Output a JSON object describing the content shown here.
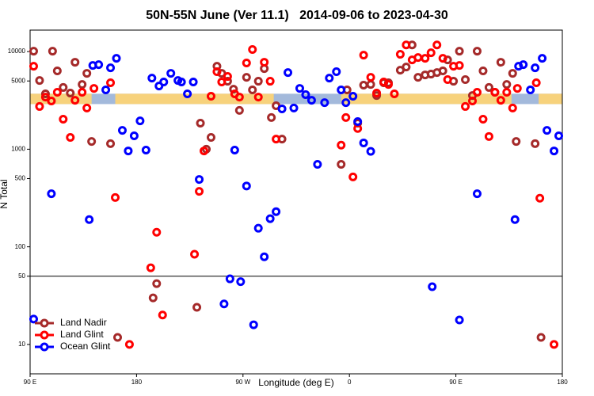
{
  "chart_data": {
    "type": "scatter",
    "title": "50N-55N June (Ver 11.1)   2014-09-06 to 2023-04-30",
    "x_label": "Longitude (deg E)",
    "y_label": "N Total",
    "log_y": true,
    "xlim": [
      90,
      540
    ],
    "ylim": [
      5,
      16600
    ],
    "xticks": [
      {
        "value": 90,
        "label": "90 E"
      },
      {
        "value": 180,
        "label": "180"
      },
      {
        "value": 270,
        "label": "90 W"
      },
      {
        "value": 360,
        "label": "0"
      },
      {
        "value": 450,
        "label": "90 E"
      },
      {
        "value": 540,
        "label": "180"
      }
    ],
    "yticks": [
      10,
      50,
      100,
      500,
      1000,
      5000,
      10000
    ],
    "hline": 50,
    "legend": "lower left",
    "surface_band": {
      "ylim": [
        2900,
        3700
      ],
      "ocean_color": "#a3b9db",
      "land_color": "#f7d27c",
      "land": [
        [
          90,
          142
        ],
        [
          162,
          296
        ],
        [
          353,
          497
        ],
        [
          520,
          540
        ]
      ]
    },
    "series": [
      {
        "name": "Land Nadir",
        "color": "#a52a2a",
        "x": [
          93,
          98,
          103,
          109,
          113,
          118,
          124,
          128,
          134,
          138,
          142,
          158,
          164,
          194,
          197,
          231,
          234,
          239,
          243,
          248,
          252,
          257,
          262,
          267,
          273,
          278,
          283,
          288,
          294,
          298,
          303,
          353,
          358,
          367,
          372,
          378,
          383,
          389,
          393,
          403,
          408,
          413,
          418,
          424,
          429,
          434,
          439,
          443,
          448,
          453,
          458,
          464,
          468,
          473,
          478,
          483,
          488,
          493,
          498,
          501,
          517,
          522
        ],
        "values": [
          10100,
          5060,
          3690,
          10100,
          6340,
          4290,
          3760,
          7780,
          4610,
          5990,
          1200,
          1140,
          11.8,
          30,
          42,
          24,
          1850,
          1000,
          1320,
          7080,
          5990,
          4970,
          4120,
          2500,
          5450,
          4050,
          4970,
          6700,
          2110,
          2790,
          1270,
          700,
          4050,
          1850,
          4530,
          4610,
          3550,
          4790,
          4790,
          6450,
          6950,
          11700,
          5450,
          5770,
          5880,
          6100,
          6340,
          8220,
          4970,
          10100,
          5160,
          3550,
          10100,
          6340,
          4290,
          3830,
          7780,
          4610,
          5990,
          1200,
          1140,
          11.8
        ]
      },
      {
        "name": "Land Glint",
        "color": "#ff0000",
        "x": [
          93,
          98,
          103,
          108,
          113,
          118,
          124,
          128,
          134,
          138,
          144,
          158,
          162,
          174,
          192,
          197,
          202,
          229,
          233,
          237,
          243,
          248,
          252,
          257,
          263,
          267,
          273,
          278,
          283,
          288,
          293,
          298,
          353,
          357,
          363,
          367,
          372,
          378,
          383,
          389,
          393,
          398,
          403,
          408,
          413,
          418,
          424,
          429,
          434,
          439,
          443,
          448,
          453,
          458,
          464,
          468,
          473,
          478,
          483,
          488,
          493,
          498,
          502,
          518,
          521,
          533
        ],
        "values": [
          7080,
          2740,
          3420,
          3120,
          3830,
          2030,
          1320,
          3170,
          3830,
          2640,
          4200,
          4790,
          320,
          10,
          61,
          141,
          20,
          84,
          370,
          960,
          3490,
          6220,
          4880,
          5560,
          3690,
          3420,
          7640,
          10500,
          3420,
          7780,
          4970,
          1270,
          1100,
          2110,
          520,
          1630,
          9200,
          5450,
          3760,
          4880,
          4610,
          3690,
          9380,
          11700,
          8220,
          8690,
          8530,
          9730,
          11700,
          8530,
          5160,
          7080,
          7210,
          2740,
          3120,
          3830,
          2030,
          1350,
          3830,
          3170,
          3830,
          2640,
          4200,
          4790,
          315,
          10
        ]
      },
      {
        "name": "Ocean Glint",
        "color": "#0000ff",
        "x": [
          93,
          108,
          140,
          143,
          148,
          154,
          158,
          163,
          168,
          173,
          178,
          183,
          188,
          193,
          199,
          203,
          209,
          215,
          218,
          223,
          228,
          233,
          254,
          259,
          263,
          268,
          273,
          279,
          283,
          288,
          293,
          298,
          303,
          308,
          313,
          318,
          323,
          328,
          333,
          339,
          343,
          349,
          353,
          357,
          363,
          367,
          372,
          378,
          430,
          453,
          468,
          500,
          503,
          507,
          513,
          517,
          523,
          527,
          533,
          537
        ],
        "values": [
          18.2,
          350,
          190,
          7210,
          7350,
          4050,
          6820,
          8530,
          1560,
          960,
          1370,
          1950,
          980,
          5350,
          4440,
          4880,
          5990,
          5060,
          4880,
          3690,
          4880,
          490,
          26,
          47,
          980,
          44,
          420,
          15.9,
          155,
          79,
          194,
          229,
          2590,
          6100,
          2640,
          4200,
          3620,
          3170,
          700,
          3000,
          5350,
          6220,
          4050,
          3000,
          3490,
          1920,
          1160,
          950,
          39,
          17.8,
          350,
          190,
          7080,
          7350,
          4050,
          6820,
          8530,
          1560,
          960,
          1370
        ]
      }
    ]
  }
}
